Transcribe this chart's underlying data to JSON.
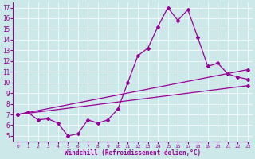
{
  "xlabel": "Windchill (Refroidissement éolien,°C)",
  "bg_color": "#cce8e8",
  "line_color": "#990099",
  "grid_color": "#ffffff",
  "xlim": [
    -0.5,
    23.5
  ],
  "ylim": [
    4.5,
    17.5
  ],
  "yticks": [
    5,
    6,
    7,
    8,
    9,
    10,
    11,
    12,
    13,
    14,
    15,
    16,
    17
  ],
  "xticks": [
    0,
    1,
    2,
    3,
    4,
    5,
    6,
    7,
    8,
    9,
    10,
    11,
    12,
    13,
    14,
    15,
    16,
    17,
    18,
    19,
    20,
    21,
    22,
    23
  ],
  "line1_x": [
    0,
    1,
    2,
    3,
    4,
    5,
    6,
    7,
    8,
    9,
    10,
    11,
    12,
    13,
    14,
    15,
    16,
    17,
    18,
    19,
    20,
    21,
    22,
    23
  ],
  "line1_y": [
    7.0,
    7.2,
    6.5,
    6.6,
    6.2,
    5.0,
    5.2,
    6.5,
    6.2,
    6.5,
    7.5,
    10.0,
    12.5,
    13.2,
    15.2,
    17.0,
    15.8,
    16.8,
    14.2,
    11.5,
    11.8,
    10.8,
    10.5,
    10.3
  ],
  "line2_x": [
    0,
    23
  ],
  "line2_y": [
    7.0,
    11.2
  ],
  "line3_x": [
    0,
    23
  ],
  "line3_y": [
    7.0,
    9.7
  ],
  "marker": "D",
  "markersize": 2.0,
  "linewidth": 0.9
}
